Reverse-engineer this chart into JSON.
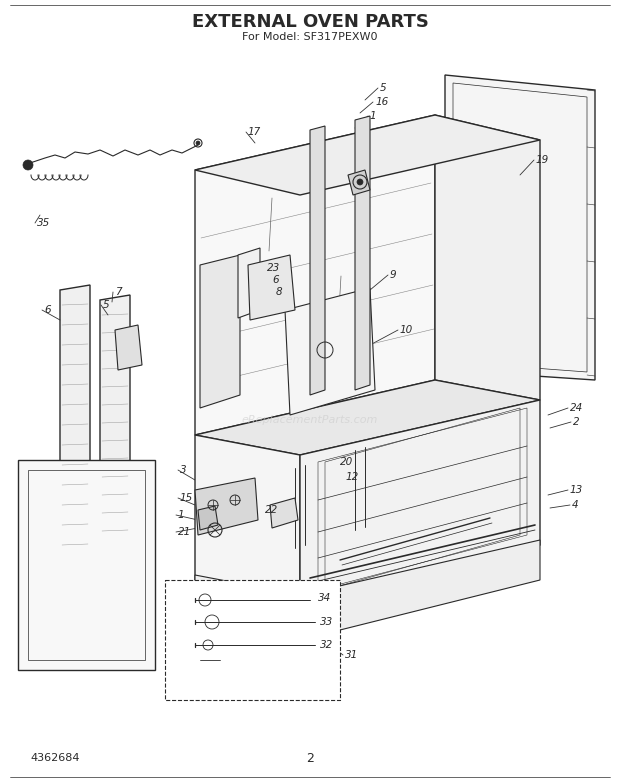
{
  "title": "EXTERNAL OVEN PARTS",
  "subtitle": "For Model: SF317PEXW0",
  "page_number": "2",
  "doc_number": "4362684",
  "background_color": "#ffffff",
  "lc": "#2a2a2a",
  "watermark": "eReplacementParts.com",
  "title_fontsize": 14,
  "subtitle_fontsize": 8,
  "figsize": [
    6.2,
    7.82
  ],
  "dpi": 100
}
